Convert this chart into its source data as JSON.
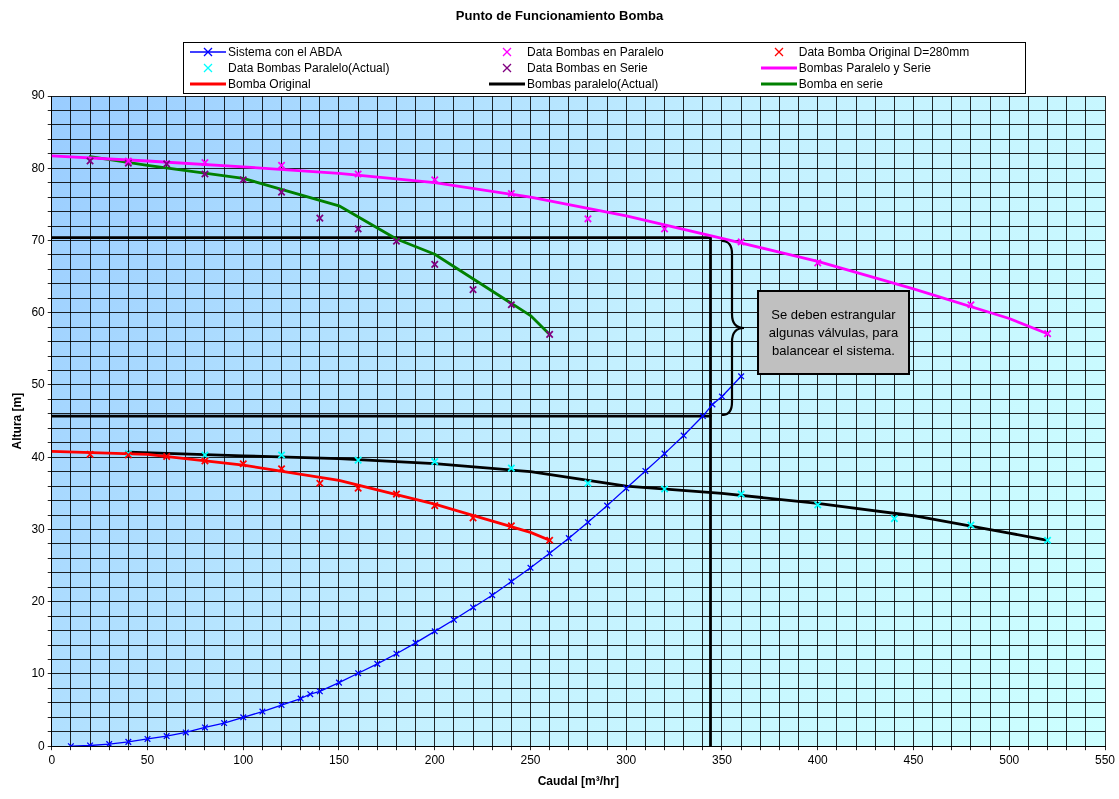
{
  "chart_data": {
    "type": "line",
    "title": "Punto de Funcionamiento Bomba",
    "xlabel": "Caudal [m³/hr]",
    "ylabel": "Altura [m]",
    "xlim": [
      0,
      550
    ],
    "ylim": [
      0,
      90
    ],
    "xticks": [
      0,
      {
        "value": 10,
        "label": null
      },
      {
        "value": 20,
        "label": null
      },
      {
        "value": 30,
        "label": null
      },
      {
        "value": 40,
        "label": null
      },
      50,
      {
        "value": 60,
        "label": null
      },
      {
        "value": 70,
        "label": null
      },
      {
        "value": 80,
        "label": null
      },
      {
        "value": 90,
        "label": null
      },
      100,
      {
        "value": 110,
        "label": null
      },
      {
        "value": 120,
        "label": null
      },
      {
        "value": 130,
        "label": null
      },
      {
        "value": 140,
        "label": null
      },
      150,
      {
        "value": 160,
        "label": null
      },
      {
        "value": 170,
        "label": null
      },
      {
        "value": 180,
        "label": null
      },
      {
        "value": 190,
        "label": null
      },
      200,
      {
        "value": 210,
        "label": null
      },
      {
        "value": 220,
        "label": null
      },
      {
        "value": 230,
        "label": null
      },
      {
        "value": 240,
        "label": null
      },
      250,
      {
        "value": 260,
        "label": null
      },
      {
        "value": 270,
        "label": null
      },
      {
        "value": 280,
        "label": null
      },
      {
        "value": 290,
        "label": null
      },
      300,
      {
        "value": 310,
        "label": null
      },
      {
        "value": 320,
        "label": null
      },
      {
        "value": 330,
        "label": null
      },
      {
        "value": 340,
        "label": null
      },
      350,
      {
        "value": 360,
        "label": null
      },
      {
        "value": 370,
        "label": null
      },
      {
        "value": 380,
        "label": null
      },
      {
        "value": 390,
        "label": null
      },
      400,
      {
        "value": 410,
        "label": null
      },
      {
        "value": 420,
        "label": null
      },
      {
        "value": 430,
        "label": null
      },
      {
        "value": 440,
        "label": null
      },
      450,
      {
        "value": 460,
        "label": null
      },
      {
        "value": 470,
        "label": null
      },
      {
        "value": 480,
        "label": null
      },
      {
        "value": 490,
        "label": null
      },
      500,
      {
        "value": 510,
        "label": null
      },
      {
        "value": 520,
        "label": null
      },
      {
        "value": 530,
        "label": null
      },
      {
        "value": 540,
        "label": null
      },
      550
    ],
    "yticks": [
      0,
      {
        "value": 2,
        "label": null
      },
      {
        "value": 4,
        "label": null
      },
      {
        "value": 6,
        "label": null
      },
      {
        "value": 8,
        "label": null
      },
      10,
      {
        "value": 12,
        "label": null
      },
      {
        "value": 14,
        "label": null
      },
      {
        "value": 16,
        "label": null
      },
      {
        "value": 18,
        "label": null
      },
      20,
      {
        "value": 22,
        "label": null
      },
      {
        "value": 24,
        "label": null
      },
      {
        "value": 26,
        "label": null
      },
      {
        "value": 28,
        "label": null
      },
      30,
      {
        "value": 32,
        "label": null
      },
      {
        "value": 34,
        "label": null
      },
      {
        "value": 36,
        "label": null
      },
      {
        "value": 38,
        "label": null
      },
      40,
      {
        "value": 42,
        "label": null
      },
      {
        "value": 44,
        "label": null
      },
      {
        "value": 46,
        "label": null
      },
      {
        "value": 48,
        "label": null
      },
      50,
      {
        "value": 52,
        "label": null
      },
      {
        "value": 54,
        "label": null
      },
      {
        "value": 56,
        "label": null
      },
      {
        "value": 58,
        "label": null
      },
      60,
      {
        "value": 62,
        "label": null
      },
      {
        "value": 64,
        "label": null
      },
      {
        "value": 66,
        "label": null
      },
      {
        "value": 68,
        "label": null
      },
      70,
      {
        "value": 72,
        "label": null
      },
      {
        "value": 74,
        "label": null
      },
      {
        "value": 76,
        "label": null
      },
      {
        "value": 78,
        "label": null
      },
      80,
      {
        "value": 82,
        "label": null
      },
      {
        "value": 84,
        "label": null
      },
      {
        "value": 86,
        "label": null
      },
      {
        "value": 88,
        "label": null
      },
      90
    ],
    "grid": true,
    "legend": "top",
    "annotations": [
      "Se deben estrangular algunas válvulas, para balancear el sistema."
    ],
    "series": [
      {
        "name": "Sistema con el ABDA",
        "type": "line",
        "marker": "cross",
        "color": "#0000ff",
        "x": [
          10,
          20,
          30,
          40,
          50,
          60,
          70,
          80,
          90,
          100,
          110,
          120,
          130,
          135,
          140,
          150,
          160,
          170,
          180,
          190,
          200,
          210,
          220,
          230,
          240,
          250,
          260,
          270,
          280,
          290,
          300,
          310,
          320,
          330,
          340,
          345,
          350,
          360
        ],
        "values": [
          0,
          0.1,
          0.3,
          0.6,
          1.0,
          1.4,
          1.9,
          2.6,
          3.2,
          4.0,
          4.8,
          5.7,
          6.6,
          7.2,
          7.6,
          8.8,
          10.1,
          11.4,
          12.8,
          14.3,
          15.9,
          17.5,
          19.2,
          20.9,
          22.8,
          24.7,
          26.7,
          28.8,
          31.0,
          33.3,
          35.7,
          38.1,
          40.5,
          43.0,
          45.7,
          47.3,
          48.4,
          51.2
        ]
      },
      {
        "name": "Data Bombas en Paralelo",
        "type": "scatter",
        "marker": "cross",
        "color": "#ff00ff",
        "x": [
          40,
          80,
          120,
          160,
          200,
          240,
          280,
          320,
          360,
          400,
          480,
          520
        ],
        "values": [
          81.0,
          80.8,
          80.4,
          79.2,
          78.4,
          76.5,
          73.0,
          71.6,
          69.8,
          66.9,
          61.1,
          57.1
        ]
      },
      {
        "name": "Data Bomba Original D=280mm",
        "type": "scatter",
        "marker": "cross",
        "color": "#ff0000",
        "x": [
          20,
          40,
          60,
          80,
          100,
          120,
          140,
          160,
          180,
          200,
          220,
          240,
          260
        ],
        "values": [
          40.4,
          40.3,
          40.1,
          39.5,
          39.1,
          38.4,
          36.4,
          35.7,
          34.9,
          33.3,
          31.6,
          30.5,
          28.5
        ]
      },
      {
        "name": "Data Bombas Paralelo(Actual)",
        "type": "scatter",
        "marker": "cross",
        "color": "#00ffff",
        "x": [
          40,
          80,
          120,
          160,
          200,
          240,
          280,
          320,
          360,
          400,
          440,
          480,
          520
        ],
        "values": [
          40.5,
          40.3,
          40.3,
          39.6,
          39.4,
          38.5,
          36.4,
          35.6,
          34.9,
          33.4,
          31.5,
          30.6,
          28.5
        ]
      },
      {
        "name": "Data Bombas en Serie",
        "type": "scatter",
        "marker": "cross",
        "color": "#800080",
        "x": [
          20,
          40,
          60,
          80,
          100,
          120,
          140,
          160,
          180,
          200,
          220,
          240,
          260
        ],
        "values": [
          81.0,
          80.7,
          80.6,
          79.2,
          78.4,
          76.7,
          73.1,
          71.6,
          69.9,
          66.7,
          63.2,
          61.1,
          57.0
        ]
      },
      {
        "name": "Bombas Paralelo y Serie",
        "type": "line",
        "marker": "none",
        "color": "#ff00ff",
        "x": [
          0,
          50,
          100,
          150,
          200,
          250,
          300,
          350,
          400,
          450,
          500,
          520
        ],
        "values": [
          81.7,
          81.0,
          80.2,
          79.3,
          78.0,
          76.0,
          73.4,
          70.3,
          67.1,
          63.3,
          59.2,
          57.1
        ]
      },
      {
        "name": "Bomba Original",
        "type": "line",
        "marker": "none",
        "color": "#ff0000",
        "x": [
          0,
          50,
          100,
          150,
          200,
          250,
          260
        ],
        "values": [
          40.8,
          40.4,
          38.9,
          36.8,
          33.5,
          29.6,
          28.5
        ]
      },
      {
        "name": "Bombas paralelo(Actual)",
        "type": "line",
        "marker": "none",
        "color": "#000000",
        "x": [
          40,
          100,
          150,
          200,
          250,
          300,
          350,
          400,
          450,
          500,
          520
        ],
        "values": [
          40.7,
          40.2,
          39.8,
          39.1,
          38.0,
          36.0,
          35.0,
          33.6,
          31.9,
          29.5,
          28.5
        ]
      },
      {
        "name": "Bomba en serie",
        "type": "line",
        "marker": "none",
        "color": "#008000",
        "x": [
          20,
          50,
          100,
          150,
          180,
          200,
          250,
          260
        ],
        "values": [
          81.6,
          80.4,
          78.6,
          74.8,
          70.2,
          68.1,
          59.6,
          57.0
        ]
      },
      {
        "type": "line",
        "marker": "none",
        "color": "#000000",
        "x": [
          0,
          344,
          344
        ],
        "values": [
          70.4,
          70.4,
          0
        ]
      },
      {
        "type": "line",
        "marker": "none",
        "color": "#000000",
        "x": [
          0,
          344
        ],
        "values": [
          45.7,
          45.7
        ]
      }
    ]
  }
}
